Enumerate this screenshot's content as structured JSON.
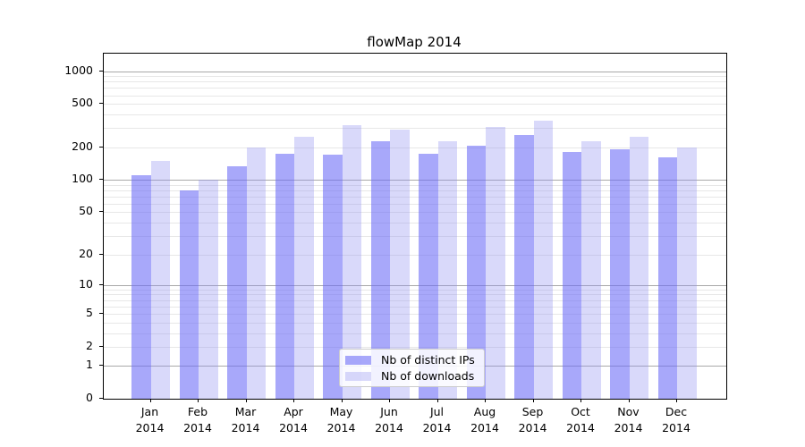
{
  "chart": {
    "title": "flowMap 2014",
    "legend": [
      "Nb of distinct IPs",
      "Nb of downloads"
    ],
    "colors": {
      "ips_fill": "rgba(110,110,247,0.60)",
      "downloads_fill": "rgba(146,146,241,0.35)",
      "major_grid": "#a9a9a9",
      "minor_grid": "#e7e7e7",
      "frame": "#000000"
    }
  },
  "chart_data": {
    "type": "bar",
    "title": "flowMap 2014",
    "categories": [
      "Jan 2014",
      "Feb 2014",
      "Mar 2014",
      "Apr 2014",
      "May 2014",
      "Jun 2014",
      "Jul 2014",
      "Aug 2014",
      "Sep 2014",
      "Oct 2014",
      "Nov 2014",
      "Dec 2014"
    ],
    "series": [
      {
        "name": "Nb of distinct IPs",
        "values": [
          110,
          80,
          133,
          174,
          170,
          229,
          174,
          207,
          261,
          181,
          191,
          160
        ]
      },
      {
        "name": "Nb of downloads",
        "values": [
          151,
          100,
          200,
          252,
          322,
          291,
          228,
          309,
          349,
          228,
          249,
          200
        ]
      }
    ],
    "xlabel": "",
    "ylabel": "",
    "yscale": "log1p",
    "yticks": [
      0,
      1,
      2,
      5,
      10,
      20,
      50,
      100,
      200,
      500,
      1000
    ],
    "ylim": [
      0,
      1445
    ],
    "grid": "on",
    "legend_position": "lower center"
  }
}
